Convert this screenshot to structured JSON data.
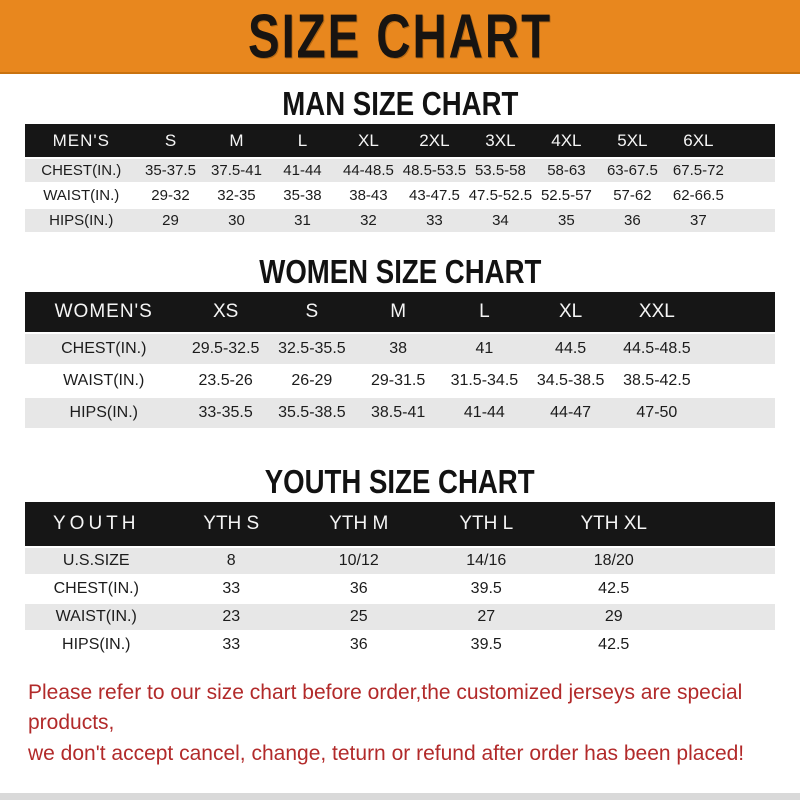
{
  "banner": {
    "title": "SIZE CHART"
  },
  "colors": {
    "banner_bg": "#E8871E",
    "header_bar": "#161616",
    "row_shaded": "#E7E7E7",
    "footer_red": "#B22A2A"
  },
  "sections": [
    {
      "heading": "MAN SIZE CHART",
      "table": {
        "label": "MEN'S",
        "columns": [
          "S",
          "M",
          "L",
          "XL",
          "2XL",
          "3XL",
          "4XL",
          "5XL",
          "6XL"
        ],
        "rows": [
          {
            "label": "CHEST(IN.)",
            "values": [
              "35-37.5",
              "37.5-41",
              "41-44",
              "44-48.5",
              "48.5-53.5",
              "53.5-58",
              "58-63",
              "63-67.5",
              "67.5-72"
            ]
          },
          {
            "label": "WAIST(IN.)",
            "values": [
              "29-32",
              "32-35",
              "35-38",
              "38-43",
              "43-47.5",
              "47.5-52.5",
              "52.5-57",
              "57-62",
              "62-66.5"
            ]
          },
          {
            "label": "HIPS(IN.)",
            "values": [
              "29",
              "30",
              "31",
              "32",
              "33",
              "34",
              "35",
              "36",
              "37"
            ]
          }
        ]
      }
    },
    {
      "heading": "WOMEN SIZE CHART",
      "table": {
        "label": "WOMEN'S",
        "columns": [
          "XS",
          "S",
          "M",
          "L",
          "XL",
          "XXL"
        ],
        "rows": [
          {
            "label": "CHEST(IN.)",
            "values": [
              "29.5-32.5",
              "32.5-35.5",
              "38",
              "41",
              "44.5",
              "44.5-48.5"
            ]
          },
          {
            "label": "WAIST(IN.)",
            "values": [
              "23.5-26",
              "26-29",
              "29-31.5",
              "31.5-34.5",
              "34.5-38.5",
              "38.5-42.5"
            ]
          },
          {
            "label": "HIPS(IN.)",
            "values": [
              "33-35.5",
              "35.5-38.5",
              "38.5-41",
              "41-44",
              "44-47",
              "47-50"
            ]
          }
        ]
      }
    },
    {
      "heading": "YOUTH SIZE CHART",
      "table": {
        "label": "YOUTH",
        "columns": [
          "YTH S",
          "YTH M",
          "YTH L",
          "YTH XL"
        ],
        "rows": [
          {
            "label": "U.S.SIZE",
            "values": [
              "8",
              "10/12",
              "14/16",
              "18/20"
            ]
          },
          {
            "label": "CHEST(IN.)",
            "values": [
              "33",
              "36",
              "39.5",
              "42.5"
            ]
          },
          {
            "label": "WAIST(IN.)",
            "values": [
              "23",
              "25",
              "27",
              "29"
            ]
          },
          {
            "label": "HIPS(IN.)",
            "values": [
              "33",
              "36",
              "39.5",
              "42.5"
            ]
          }
        ]
      }
    }
  ],
  "footer": {
    "line1": "Please refer to our size chart before order,the customized jerseys are special products,",
    "line2": "we don't accept cancel, change, teturn or refund after order has been placed!"
  }
}
